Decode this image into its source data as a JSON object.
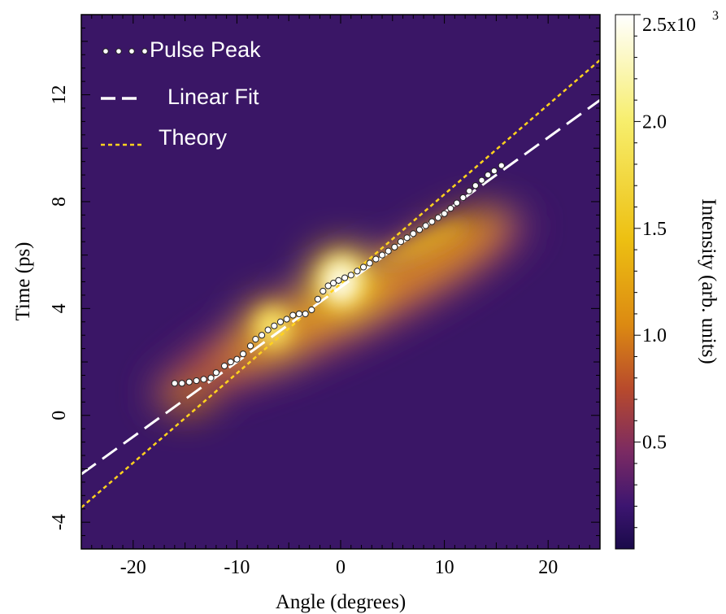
{
  "chart_data": {
    "type": "heatmap",
    "title": "",
    "xlabel": "Angle (degrees)",
    "ylabel": "Time (ps)",
    "xlim": [
      -25,
      25
    ],
    "ylim": [
      -5,
      15
    ],
    "x_ticks": [
      -20,
      -10,
      0,
      10,
      20
    ],
    "x_tick_labels": [
      "-20",
      "-10",
      "0",
      "10",
      "20"
    ],
    "y_ticks": [
      -4,
      0,
      4,
      8,
      12
    ],
    "y_tick_labels": [
      "-4",
      "0",
      "4",
      "8",
      "12"
    ],
    "colorbar": {
      "label": "Intensity (arb. units)",
      "range": [
        0,
        2500
      ],
      "ticks": [
        500,
        1000,
        1500,
        2000,
        2500
      ],
      "tick_labels": [
        "0.5",
        "1.0",
        "1.5",
        "2.0",
        "2.5x10"
      ],
      "top_exponent": "3",
      "colormap": [
        "#1a0a4a",
        "#3c1570",
        "#7a2a63",
        "#b84a2c",
        "#dc8a12",
        "#edc012",
        "#f7ee6c",
        "#ffffff"
      ]
    },
    "legend": {
      "placement": "top-left",
      "entries": [
        {
          "label": "Pulse Peak",
          "style": "dots",
          "color": "#ffffff"
        },
        {
          "label": "Linear Fit",
          "style": "dashed",
          "color": "#ffffff"
        },
        {
          "label": "Theory",
          "style": "dotted",
          "color": "#ffd21e"
        }
      ]
    },
    "series": [
      {
        "name": "Pulse Peak",
        "type": "scatter",
        "x": [
          -16,
          -15.3,
          -14.6,
          -13.9,
          -13.2,
          -12.5,
          -12,
          -11.2,
          -10.6,
          -10,
          -9.4,
          -8.7,
          -8.2,
          -7.6,
          -7,
          -6.4,
          -5.8,
          -5.2,
          -4.6,
          -4,
          -3.4,
          -2.8,
          -2.2,
          -1.7,
          -1.2,
          -0.7,
          -0.2,
          0.4,
          1,
          1.6,
          2.2,
          2.8,
          3.4,
          4,
          4.6,
          5.2,
          5.8,
          6.4,
          7,
          7.6,
          8.2,
          8.8,
          9.4,
          10,
          10.6,
          11.2,
          11.8,
          12.4,
          13,
          13.6,
          14.2,
          14.8,
          15.5
        ],
        "y": [
          1.2,
          1.2,
          1.25,
          1.3,
          1.35,
          1.4,
          1.6,
          1.85,
          2.0,
          2.1,
          2.3,
          2.6,
          2.85,
          3.0,
          3.2,
          3.35,
          3.5,
          3.6,
          3.75,
          3.8,
          3.8,
          3.95,
          4.35,
          4.65,
          4.85,
          4.95,
          5.05,
          5.15,
          5.25,
          5.4,
          5.55,
          5.7,
          5.85,
          6.0,
          6.15,
          6.3,
          6.5,
          6.65,
          6.8,
          6.95,
          7.1,
          7.25,
          7.4,
          7.55,
          7.75,
          7.95,
          8.15,
          8.4,
          8.6,
          8.8,
          9.0,
          9.15,
          9.35
        ]
      },
      {
        "name": "Linear Fit",
        "type": "line",
        "x": [
          -25,
          25
        ],
        "y": [
          -2.2,
          11.8
        ],
        "style": "dashed"
      },
      {
        "name": "Theory",
        "type": "line",
        "x": [
          -25,
          25
        ],
        "y": [
          -3.45,
          13.3
        ],
        "style": "dotted"
      }
    ]
  }
}
